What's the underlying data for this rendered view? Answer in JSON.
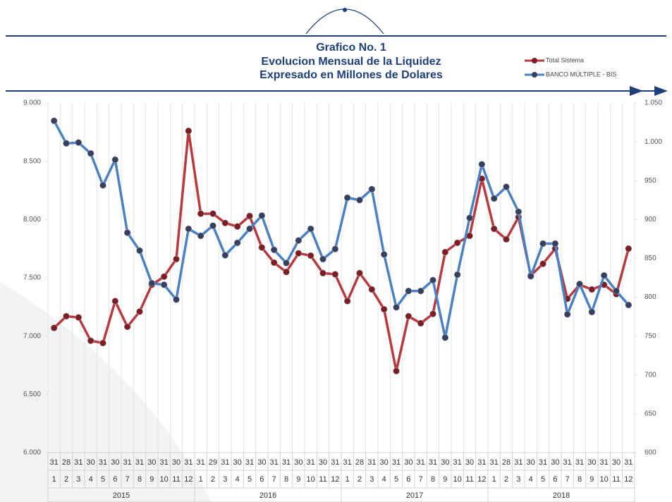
{
  "chart_data": {
    "type": "line",
    "title": [
      "Grafico No. 1",
      "Evolucion Mensual de la Liquidez",
      "Expresado en Millones de Dolares"
    ],
    "day_labels": [
      "31",
      "28",
      "31",
      "30",
      "31",
      "30",
      "31",
      "31",
      "30",
      "31",
      "30",
      "31",
      "31",
      "29",
      "31",
      "30",
      "31",
      "30",
      "31",
      "31",
      "30",
      "31",
      "30",
      "31",
      "31",
      "28",
      "31",
      "30",
      "31",
      "30",
      "31",
      "31",
      "30",
      "31",
      "30",
      "31",
      "31",
      "28",
      "31",
      "30",
      "31",
      "30",
      "31",
      "31",
      "30",
      "31",
      "30",
      "31"
    ],
    "categories": [
      "1",
      "2",
      "3",
      "4",
      "5",
      "6",
      "7",
      "8",
      "9",
      "10",
      "11",
      "12",
      "1",
      "2",
      "3",
      "4",
      "5",
      "6",
      "7",
      "8",
      "9",
      "10",
      "11",
      "12",
      "1",
      "2",
      "3",
      "4",
      "5",
      "6",
      "7",
      "8",
      "9",
      "10",
      "11",
      "12",
      "1",
      "2",
      "3",
      "4",
      "5",
      "6",
      "7",
      "8",
      "9",
      "10",
      "11",
      "12"
    ],
    "years": [
      "2015",
      "2016",
      "2017",
      "2018"
    ],
    "series": [
      {
        "name": "Total Sistema",
        "color": "#b8393e",
        "values": [
          7070,
          7170,
          7160,
          6960,
          6940,
          7300,
          7080,
          7210,
          7440,
          7510,
          7660,
          8760,
          8050,
          8050,
          7970,
          7940,
          8030,
          7760,
          7630,
          7550,
          7710,
          7690,
          7540,
          7530,
          7300,
          7540,
          7400,
          7230,
          6700,
          7170,
          7110,
          7190,
          7720,
          7800,
          7860,
          8350,
          7920,
          7830,
          8020,
          7520,
          7620,
          7750,
          7320,
          7440,
          7400,
          7440,
          7360,
          7750
        ]
      },
      {
        "name": "BANCO MÚLTIPLE - BIS",
        "color": "#4a80c4",
        "axis": "y2",
        "values": [
          1027,
          998,
          999,
          985,
          944,
          977,
          883,
          860,
          818,
          816,
          797,
          888,
          879,
          892,
          854,
          870,
          888,
          905,
          861,
          844,
          873,
          888,
          849,
          862,
          928,
          925,
          939,
          855,
          787,
          808,
          808,
          822,
          748,
          829,
          902,
          971,
          927,
          942,
          910,
          827,
          869,
          869,
          778,
          817,
          781,
          828,
          808,
          790
        ]
      }
    ],
    "ylim": [
      6000,
      9000
    ],
    "yticks": [
      {
        "value": 6000,
        "label": "6.000"
      },
      {
        "value": 6500,
        "label": "6.500"
      },
      {
        "value": 7000,
        "label": "7.000"
      },
      {
        "value": 7500,
        "label": "7.500"
      },
      {
        "value": 8000,
        "label": "8.000"
      },
      {
        "value": 8500,
        "label": "8.500"
      },
      {
        "value": 9000,
        "label": "9.000"
      }
    ],
    "y2lim": [
      600,
      1050
    ],
    "y2ticks": [
      600,
      650,
      700,
      750,
      800,
      850,
      900,
      950,
      {
        "value": 1000,
        "label": "1.000"
      },
      {
        "value": 1050,
        "label": "1.050"
      }
    ],
    "grid": "x",
    "legend": "top-right"
  }
}
